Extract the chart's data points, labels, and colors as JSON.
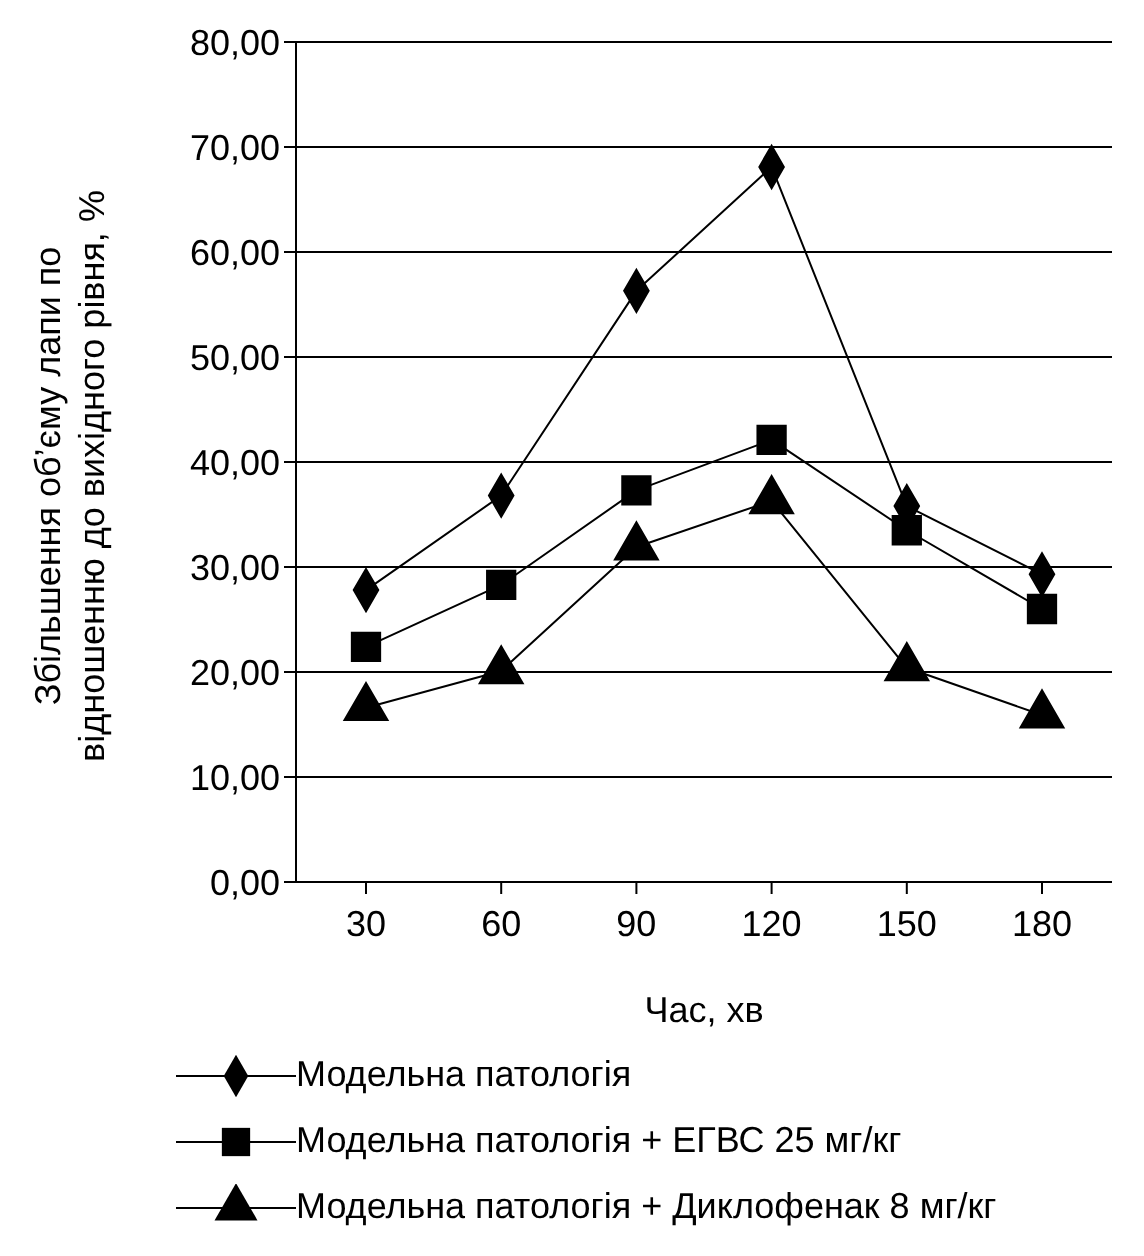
{
  "chart_data": {
    "type": "line",
    "xlabel": "Час, хв",
    "ylabel": "Збільшення об’єму лапи по\nвідношенню до вихідного рівня, %",
    "categories": [
      "30",
      "60",
      "90",
      "120",
      "150",
      "180"
    ],
    "series": [
      {
        "name": "Модельна патологія",
        "color": "#000000",
        "marker": "diamond",
        "values": [
          27.8,
          36.8,
          56.3,
          68.1,
          35.8,
          29.3
        ]
      },
      {
        "name": "Модельна патологія + ЕГВС 25 мг/кг",
        "color": "#000000",
        "marker": "square",
        "values": [
          22.4,
          28.3,
          37.3,
          42.1,
          33.5,
          26.0
        ]
      },
      {
        "name": "Модельна патологія + Диклофенак 8 мг/кг",
        "color": "#000000",
        "marker": "triangle",
        "values": [
          16.6,
          20.1,
          31.9,
          36.3,
          20.4,
          15.9
        ]
      }
    ],
    "ylim": [
      0,
      80
    ],
    "yticks": [
      {
        "value": 0,
        "label": "0,00"
      },
      {
        "value": 10,
        "label": "10,00"
      },
      {
        "value": 20,
        "label": "20,00"
      },
      {
        "value": 30,
        "label": "30,00"
      },
      {
        "value": 40,
        "label": "40,00"
      },
      {
        "value": 50,
        "label": "50,00"
      },
      {
        "value": 60,
        "label": "60,00"
      },
      {
        "value": 70,
        "label": "70,00"
      },
      {
        "value": 80,
        "label": "80,00"
      }
    ],
    "grid": "y",
    "legend": "bottom",
    "line_style": "solid"
  }
}
